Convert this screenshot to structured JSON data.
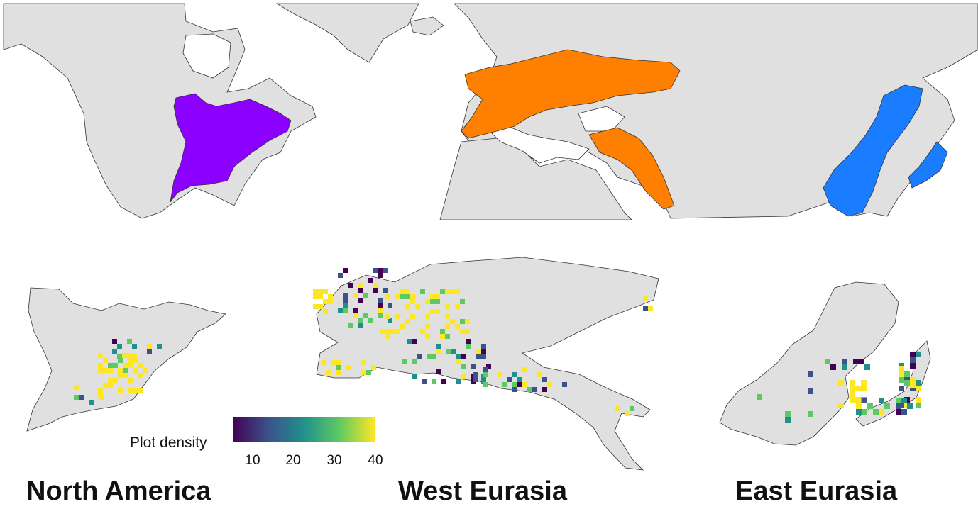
{
  "regions": [
    {
      "name": "North America",
      "color": "#8b00ff"
    },
    {
      "name": "West Eurasia",
      "color": "#ff7f00"
    },
    {
      "name": "East Eurasia",
      "color": "#1a7cff"
    }
  ],
  "legend": {
    "label": "Plot density",
    "ticks": [
      "10",
      "20",
      "30",
      "40"
    ],
    "colormap": [
      "#440154",
      "#3b528b",
      "#21908d",
      "#5dc963",
      "#fde725"
    ],
    "range": [
      3,
      40
    ]
  },
  "colors": {
    "land": "#e0e0e0",
    "coast": "#333333",
    "ocean": "#ffffff"
  }
}
